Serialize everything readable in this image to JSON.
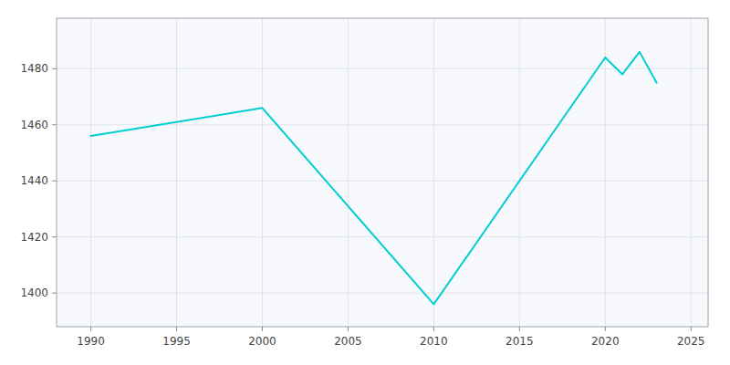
{
  "chart_data": {
    "type": "line",
    "x": [
      1990,
      2000,
      2010,
      2020,
      2021,
      2022,
      2023
    ],
    "values": [
      1456,
      1466,
      1396,
      1484,
      1478,
      1486,
      1475
    ],
    "color": "#00CED1",
    "xlim": [
      1988,
      2026
    ],
    "ylim": [
      1388,
      1498
    ],
    "xticks": [
      1990,
      1995,
      2000,
      2005,
      2010,
      2015,
      2020,
      2025
    ],
    "yticks": [
      1400,
      1420,
      1440,
      1460,
      1480
    ],
    "grid": true
  }
}
